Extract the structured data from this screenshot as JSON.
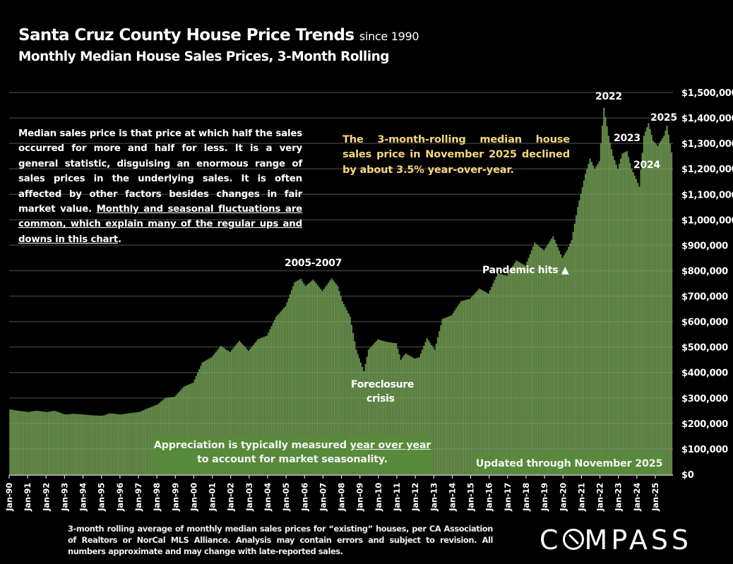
{
  "header": {
    "title": "Santa Cruz County House Price Trends",
    "title_suffix": "since 1990",
    "subtitle": "Monthly Median House Sales Prices, 3-Month Rolling"
  },
  "notes": {
    "median_def_plain": "Median sales price is that price at which half the sales occurred for more and half for less. It is a very general statistic, disguising an enormous range of sales prices in the underlying sales. It is often affected by other factors besides changes in fair market value. ",
    "median_def_underlined": "Monthly and seasonal fluctuations are common, which explain many of the regular ups and downs in this chart",
    "median_def_end": ".",
    "yoy_note": "The 3-month-rolling median house sales price in November 2025 declined by about 3.5% year-over-year.",
    "appreciation_plain": "Appreciation is typically measured ",
    "appreciation_underlined": "year over year",
    "appreciation_line2": "to account for market seasonality.",
    "updated": "Updated through November 2025"
  },
  "annotations": {
    "a2005_2007": "2005-2007",
    "foreclosure": "Foreclosure",
    "crisis": "crisis",
    "pandemic": "Pandemic hits ▲",
    "y2022": "2022",
    "y2023": "2023",
    "y2024": "2024",
    "y2025": "2025"
  },
  "footer": {
    "source": "3-month rolling average of monthly median sales prices for “existing” houses, per CA Association of Realtors or NorCal MLS Alliance. Analysis may contain errors and subject to revision. All numbers approximate and may change with late-reported sales.",
    "logo": "COMPASS"
  },
  "colors": {
    "bar": "#6a9a48",
    "bar_highlight": "#a8cc8c",
    "grid": "#3a3a3a",
    "yoy_text": "#f5d77b",
    "box": "#578a3a"
  },
  "chart_data": {
    "type": "bar",
    "title": "Santa Cruz County House Price Trends since 1990",
    "subtitle": "Monthly Median House Sales Prices, 3-Month Rolling",
    "xlabel": "",
    "ylabel": "",
    "ylim": [
      0,
      1500000
    ],
    "y_ticks": [
      "$0",
      "$100,000",
      "$200,000",
      "$300,000",
      "$400,000",
      "$500,000",
      "$600,000",
      "$700,000",
      "$800,000",
      "$900,000",
      "$1,000,000",
      "$1,100,000",
      "$1,200,000",
      "$1,300,000",
      "$1,400,000",
      "$1,500,000"
    ],
    "x_ticks": [
      "Jan-90",
      "Jan-91",
      "Jan-92",
      "Jan-93",
      "Jan-94",
      "Jan-95",
      "Jan-96",
      "Jan-97",
      "Jan-98",
      "Jan-99",
      "Jan-00",
      "Jan-01",
      "Jan-02",
      "Jan-03",
      "Jan-04",
      "Jan-05",
      "Jan-06",
      "Jan-07",
      "Jan-08",
      "Jan-09",
      "Jan-10",
      "Jan-11",
      "Jan-12",
      "Jan-13",
      "Jan-14",
      "Jan-15",
      "Jan-16",
      "Jan-17",
      "Jan-18",
      "Jan-19",
      "Jan-20",
      "Jan-21",
      "Jan-22",
      "Jan-23",
      "Jan-24",
      "Jan-25"
    ],
    "start": "1990-01",
    "end": "2025-11",
    "grid": true,
    "y_axis_position": "right",
    "anchors_note": "Approximate monthly values (USD) read from chart at key points; intermediate months interpolated.",
    "anchors": [
      [
        "1990-01",
        255000
      ],
      [
        "1990-06",
        250000
      ],
      [
        "1991-01",
        245000
      ],
      [
        "1991-06",
        250000
      ],
      [
        "1992-01",
        245000
      ],
      [
        "1992-06",
        250000
      ],
      [
        "1993-01",
        235000
      ],
      [
        "1993-06",
        238000
      ],
      [
        "1994-01",
        235000
      ],
      [
        "1994-06",
        232000
      ],
      [
        "1995-01",
        230000
      ],
      [
        "1995-06",
        240000
      ],
      [
        "1996-01",
        235000
      ],
      [
        "1996-06",
        240000
      ],
      [
        "1997-01",
        245000
      ],
      [
        "1997-06",
        258000
      ],
      [
        "1998-01",
        275000
      ],
      [
        "1998-06",
        300000
      ],
      [
        "1998-12",
        305000
      ],
      [
        "1999-06",
        345000
      ],
      [
        "1999-12",
        360000
      ],
      [
        "2000-06",
        440000
      ],
      [
        "2000-12",
        460000
      ],
      [
        "2001-06",
        505000
      ],
      [
        "2001-12",
        480000
      ],
      [
        "2002-06",
        525000
      ],
      [
        "2002-12",
        485000
      ],
      [
        "2003-06",
        530000
      ],
      [
        "2003-12",
        545000
      ],
      [
        "2004-06",
        620000
      ],
      [
        "2004-12",
        660000
      ],
      [
        "2005-06",
        755000
      ],
      [
        "2005-10",
        768000
      ],
      [
        "2006-01",
        740000
      ],
      [
        "2006-06",
        765000
      ],
      [
        "2006-12",
        720000
      ],
      [
        "2007-06",
        770000
      ],
      [
        "2007-10",
        740000
      ],
      [
        "2008-01",
        680000
      ],
      [
        "2008-06",
        620000
      ],
      [
        "2008-10",
        490000
      ],
      [
        "2009-03",
        405000
      ],
      [
        "2009-06",
        490000
      ],
      [
        "2009-12",
        530000
      ],
      [
        "2010-06",
        520000
      ],
      [
        "2010-12",
        515000
      ],
      [
        "2011-03",
        450000
      ],
      [
        "2011-06",
        475000
      ],
      [
        "2011-12",
        455000
      ],
      [
        "2012-03",
        460000
      ],
      [
        "2012-08",
        535000
      ],
      [
        "2013-01",
        490000
      ],
      [
        "2013-06",
        610000
      ],
      [
        "2013-12",
        625000
      ],
      [
        "2014-06",
        680000
      ],
      [
        "2014-12",
        690000
      ],
      [
        "2015-06",
        730000
      ],
      [
        "2015-12",
        710000
      ],
      [
        "2016-06",
        790000
      ],
      [
        "2016-12",
        780000
      ],
      [
        "2017-06",
        840000
      ],
      [
        "2017-12",
        820000
      ],
      [
        "2018-06",
        910000
      ],
      [
        "2018-12",
        880000
      ],
      [
        "2019-06",
        935000
      ],
      [
        "2019-12",
        850000
      ],
      [
        "2020-03",
        880000
      ],
      [
        "2020-06",
        920000
      ],
      [
        "2020-10",
        1050000
      ],
      [
        "2021-03",
        1180000
      ],
      [
        "2021-06",
        1240000
      ],
      [
        "2021-09",
        1200000
      ],
      [
        "2021-12",
        1230000
      ],
      [
        "2022-03",
        1440000
      ],
      [
        "2022-06",
        1330000
      ],
      [
        "2022-09",
        1250000
      ],
      [
        "2022-12",
        1200000
      ],
      [
        "2023-03",
        1260000
      ],
      [
        "2023-06",
        1270000
      ],
      [
        "2023-09",
        1200000
      ],
      [
        "2023-12",
        1160000
      ],
      [
        "2024-02",
        1130000
      ],
      [
        "2024-05",
        1330000
      ],
      [
        "2024-08",
        1380000
      ],
      [
        "2024-11",
        1310000
      ],
      [
        "2025-02",
        1290000
      ],
      [
        "2025-06",
        1330000
      ],
      [
        "2025-08",
        1370000
      ],
      [
        "2025-11",
        1265000
      ]
    ]
  }
}
